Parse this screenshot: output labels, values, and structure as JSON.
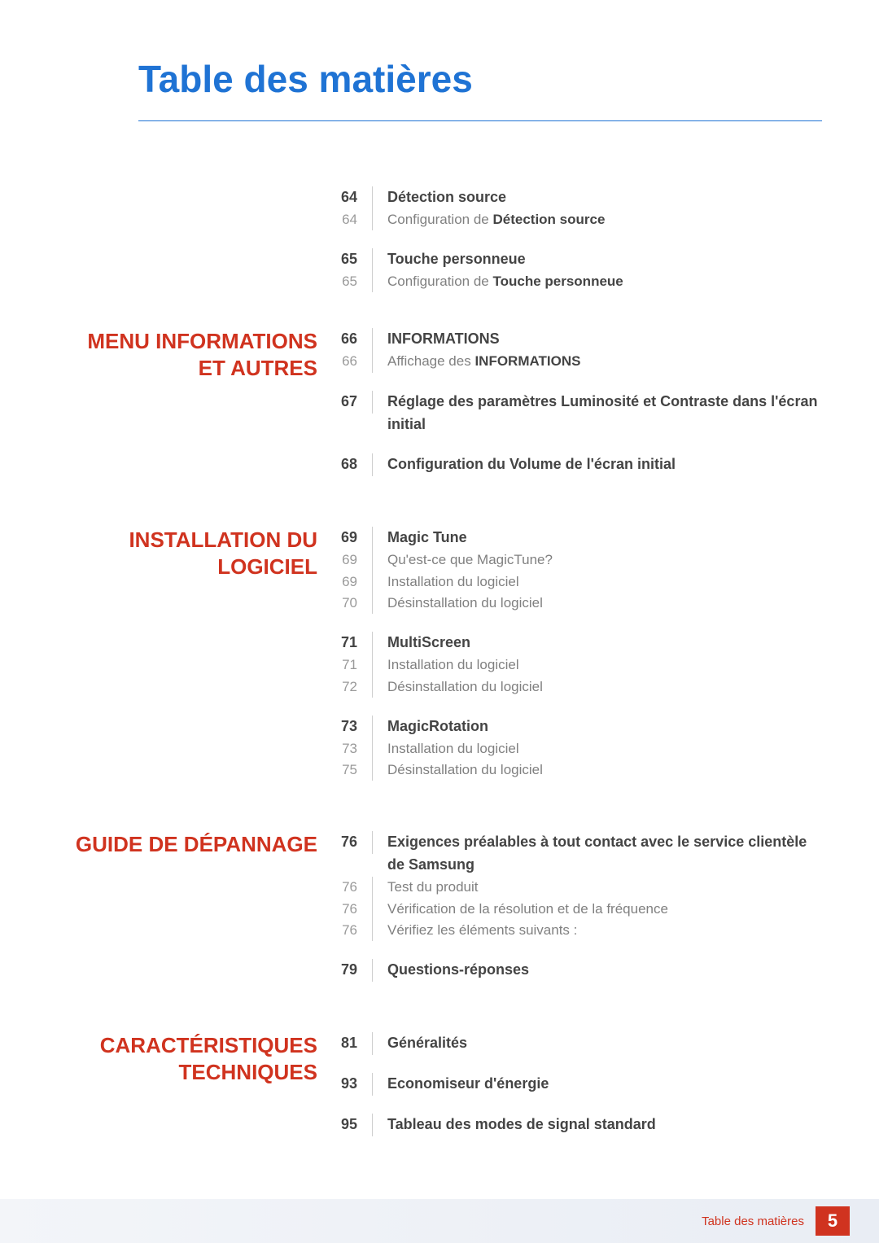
{
  "title": "Table des matières",
  "footer": {
    "label": "Table des matières",
    "page": "5"
  },
  "sections": [
    {
      "label": "",
      "groups": [
        {
          "heading": {
            "page": "64",
            "text": "Détection source"
          },
          "subs": [
            {
              "page": "64",
              "prefix": "Configuration de ",
              "bold": "Détection source",
              "suffix": ""
            }
          ]
        },
        {
          "heading": {
            "page": "65",
            "text": "Touche personneue"
          },
          "subs": [
            {
              "page": "65",
              "prefix": "Configuration de ",
              "bold": "Touche personneue",
              "suffix": ""
            }
          ]
        }
      ]
    },
    {
      "label": "MENU INFORMATIONS ET AUTRES",
      "groups": [
        {
          "heading": {
            "page": "66",
            "text": "INFORMATIONS"
          },
          "subs": [
            {
              "page": "66",
              "prefix": "Affichage des ",
              "bold": "INFORMATIONS",
              "suffix": ""
            }
          ]
        },
        {
          "heading": {
            "page": "67",
            "text": "Réglage des paramètres Luminosité et Contraste dans l'écran initial"
          },
          "subs": []
        },
        {
          "heading": {
            "page": "68",
            "text": "Configuration du Volume de l'écran initial"
          },
          "subs": []
        }
      ]
    },
    {
      "label": "INSTALLATION DU LOGICIEL",
      "groups": [
        {
          "heading": {
            "page": "69",
            "text": "Magic Tune"
          },
          "subs": [
            {
              "page": "69",
              "prefix": "Qu'est-ce que MagicTune?",
              "bold": "",
              "suffix": ""
            },
            {
              "page": "69",
              "prefix": "Installation du logiciel",
              "bold": "",
              "suffix": ""
            },
            {
              "page": "70",
              "prefix": "Désinstallation du logiciel",
              "bold": "",
              "suffix": ""
            }
          ]
        },
        {
          "heading": {
            "page": "71",
            "text": "MultiScreen"
          },
          "subs": [
            {
              "page": "71",
              "prefix": "Installation du logiciel",
              "bold": "",
              "suffix": ""
            },
            {
              "page": "72",
              "prefix": "Désinstallation du logiciel",
              "bold": "",
              "suffix": ""
            }
          ]
        },
        {
          "heading": {
            "page": "73",
            "text": "MagicRotation"
          },
          "subs": [
            {
              "page": "73",
              "prefix": "Installation du logiciel",
              "bold": "",
              "suffix": ""
            },
            {
              "page": "75",
              "prefix": "Désinstallation du logiciel",
              "bold": "",
              "suffix": ""
            }
          ]
        }
      ]
    },
    {
      "label": "GUIDE DE DÉPANNAGE",
      "groups": [
        {
          "heading": {
            "page": "76",
            "text": "Exigences préalables à tout contact avec le service clientèle de Samsung"
          },
          "subs": [
            {
              "page": "76",
              "prefix": "Test du produit",
              "bold": "",
              "suffix": ""
            },
            {
              "page": "76",
              "prefix": "Vérification de la résolution et de la fréquence",
              "bold": "",
              "suffix": ""
            },
            {
              "page": "76",
              "prefix": "Vérifiez les éléments suivants :",
              "bold": "",
              "suffix": ""
            }
          ]
        },
        {
          "heading": {
            "page": "79",
            "text": "Questions-réponses"
          },
          "subs": []
        }
      ]
    },
    {
      "label": "CARACTÉRISTIQUES TECHNIQUES",
      "groups": [
        {
          "heading": {
            "page": "81",
            "text": "Généralités"
          },
          "subs": []
        },
        {
          "heading": {
            "page": "93",
            "text": "Economiseur d'énergie"
          },
          "subs": []
        },
        {
          "heading": {
            "page": "95",
            "text": "Tableau des modes de signal standard"
          },
          "subs": []
        }
      ]
    }
  ]
}
